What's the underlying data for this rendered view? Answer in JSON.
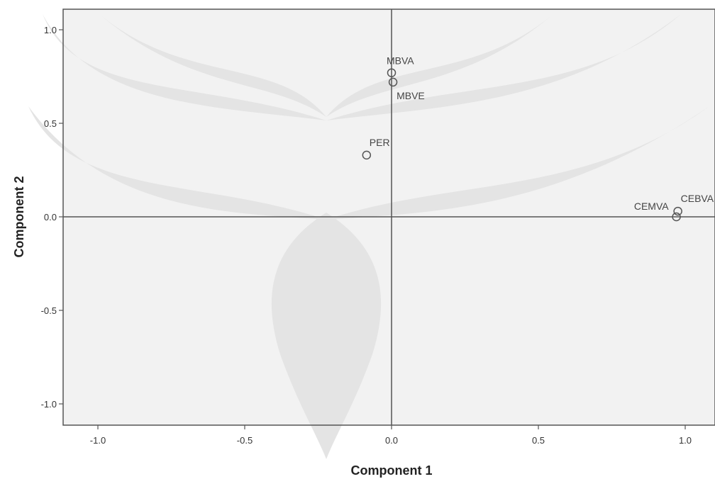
{
  "chart_data": {
    "type": "scatter",
    "xlabel": "Component 1",
    "ylabel": "Component 2",
    "xlim": [
      -1.1,
      1.1
    ],
    "ylim": [
      -1.1,
      1.1
    ],
    "xticks": [
      -1.0,
      -0.5,
      0.0,
      0.5,
      1.0
    ],
    "yticks": [
      -1.0,
      -0.5,
      0.0,
      0.5,
      1.0
    ],
    "xtick_labels": [
      "-1.0",
      "-0.5",
      "0.0",
      "0.5",
      "1.0"
    ],
    "ytick_labels": [
      "-1.0",
      "-0.5",
      "0.0",
      "0.5",
      "1.0"
    ],
    "grid": false,
    "reference_lines": {
      "x": 0.0,
      "y": 0.0
    },
    "points": [
      {
        "label": "MBVA",
        "x": 0.0,
        "y": 0.77,
        "label_pos": "above"
      },
      {
        "label": "MBVE",
        "x": 0.005,
        "y": 0.72,
        "label_pos": "below-right"
      },
      {
        "label": "PER",
        "x": -0.085,
        "y": 0.33,
        "label_pos": "above-right"
      },
      {
        "label": "CEBVA",
        "x": 0.975,
        "y": 0.03,
        "label_pos": "above-right"
      },
      {
        "label": "CEMVA",
        "x": 0.97,
        "y": 0.0,
        "label_pos": "left"
      }
    ],
    "colors": {
      "background": "#f2f2f2",
      "watermark": "#e4e4e4",
      "axis": "#555555",
      "marker": "#555555"
    }
  }
}
